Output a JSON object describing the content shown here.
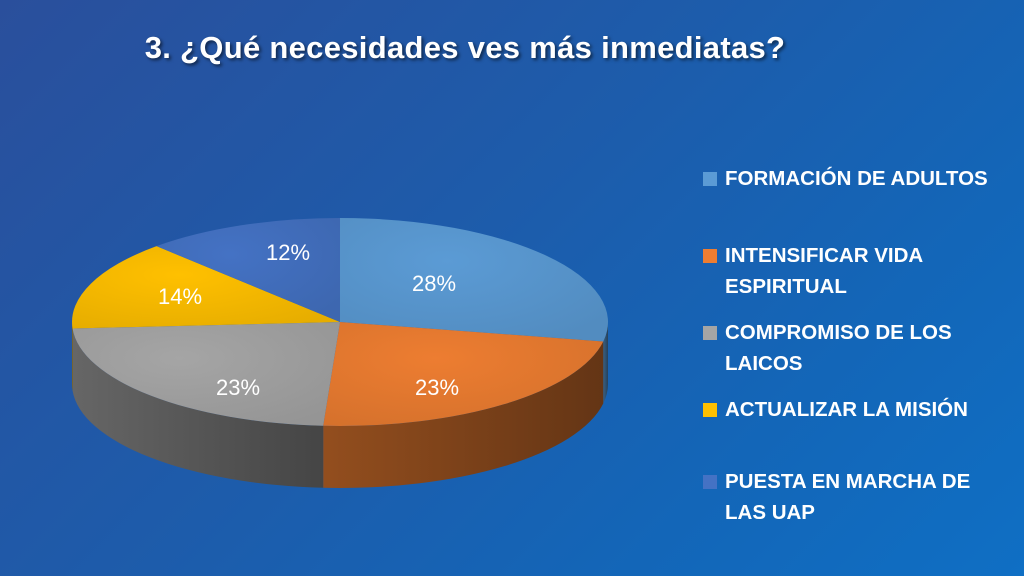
{
  "chart_data": {
    "type": "pie",
    "title": "3. ¿Qué necesidades ves más inmediatas?",
    "categories": [
      "FORMACIÓN DE ADULTOS",
      "INTENSIFICAR VIDA ESPIRITUAL",
      "COMPROMISO DE LOS LAICOS",
      "ACTUALIZAR LA MISIÓN",
      "PUESTA EN MARCHA DE LAS UAP"
    ],
    "values": [
      28,
      23,
      23,
      14,
      12
    ],
    "labels": [
      "28%",
      "23%",
      "23%",
      "14%",
      "12%"
    ],
    "colors": [
      "#5b9bd5",
      "#ed7d31",
      "#a5a5a5",
      "#ffc000",
      "#4472c4"
    ],
    "legend": "right",
    "style": "3d"
  }
}
